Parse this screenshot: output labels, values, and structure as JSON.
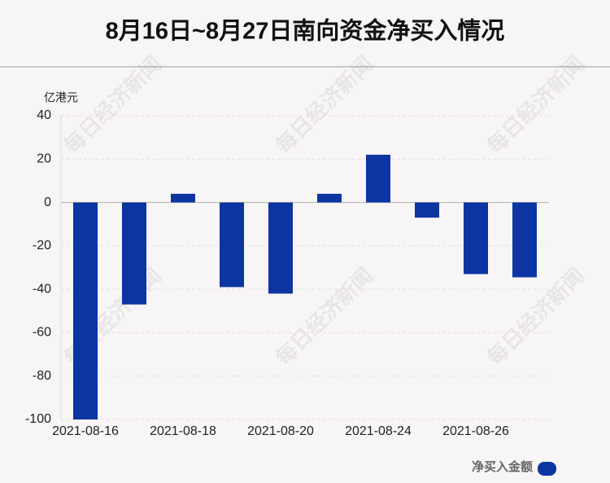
{
  "chart_data": {
    "type": "bar",
    "title": "8月16日~8月27日南向资金净买入情况",
    "y_unit": "亿港元",
    "watermark": "每日经济新闻",
    "categories": [
      "2021-08-16",
      null,
      "2021-08-18",
      null,
      "2021-08-20",
      null,
      "2021-08-24",
      null,
      "2021-08-26",
      null
    ],
    "series": [
      {
        "name": "净买入金额",
        "color": "#0c35a1",
        "values": [
          -100,
          -47,
          4,
          -39,
          -42,
          4,
          22,
          -7,
          -33,
          -34.5
        ]
      }
    ],
    "ylim": [
      -100,
      40
    ],
    "yticks": [
      -100,
      -80,
      -60,
      -40,
      -20,
      0,
      20,
      40
    ],
    "grid": true,
    "legend": "bottom-right"
  }
}
